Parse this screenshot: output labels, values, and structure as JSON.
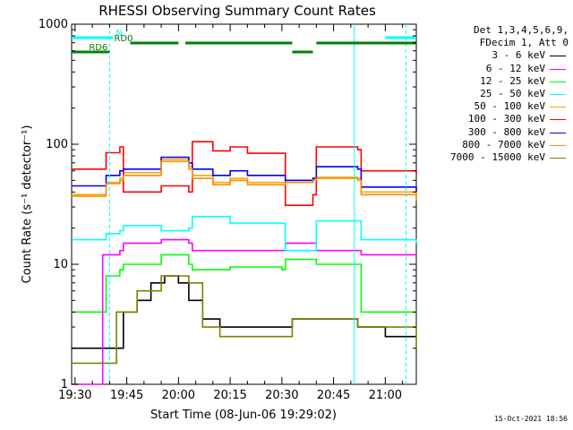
{
  "chart_data": {
    "type": "line",
    "title": "RHESSI Observing Summary Count Rates",
    "xlabel": "Start Time (08-Jun-06 19:29:02)",
    "ylabel": "Count Rate (s⁻¹ detector⁻¹)",
    "y_scale": "log",
    "ylim": [
      1,
      1000
    ],
    "xlim": [
      "19:29",
      "21:09"
    ],
    "x_ticks": [
      "19:30",
      "19:45",
      "20:00",
      "20:15",
      "20:30",
      "20:45",
      "21:00"
    ],
    "y_ticks": [
      "1",
      "10",
      "100",
      "1000"
    ],
    "grid": false,
    "legend_position": "right",
    "legend_header": [
      "Det 1,3,4,5,6,9,",
      "FDecim 1, Att 0"
    ],
    "series": [
      {
        "name": "3 - 6 keV",
        "color": "#000000",
        "values": [
          {
            "t": "19:29",
            "v": 2
          },
          {
            "t": "19:39",
            "v": 2
          },
          {
            "t": "19:44",
            "v": 4
          },
          {
            "t": "19:48",
            "v": 5
          },
          {
            "t": "19:52",
            "v": 7
          },
          {
            "t": "19:56",
            "v": 8
          },
          {
            "t": "20:00",
            "v": 7
          },
          {
            "t": "20:03",
            "v": 5
          },
          {
            "t": "20:07",
            "v": 3.5
          },
          {
            "t": "20:12",
            "v": 3
          },
          {
            "t": "20:20",
            "v": 3
          },
          {
            "t": "20:30",
            "v": 3
          },
          {
            "t": "20:33",
            "v": 3.5
          },
          {
            "t": "20:40",
            "v": 3.5
          },
          {
            "t": "20:45",
            "v": 3.5
          },
          {
            "t": "20:52",
            "v": 3
          },
          {
            "t": "21:00",
            "v": 2.5
          },
          {
            "t": "21:09",
            "v": 2.5
          }
        ]
      },
      {
        "name": "6 - 12 keV",
        "color": "#ff00ff",
        "values": [
          {
            "t": "19:29",
            "v": 1
          },
          {
            "t": "19:37",
            "v": 1
          },
          {
            "t": "19:38",
            "v": 12
          },
          {
            "t": "19:43",
            "v": 13
          },
          {
            "t": "19:44",
            "v": 15
          },
          {
            "t": "19:55",
            "v": 16
          },
          {
            "t": "20:03",
            "v": 15
          },
          {
            "t": "20:04",
            "v": 13
          },
          {
            "t": "20:30",
            "v": 13
          },
          {
            "t": "20:31",
            "v": 15
          },
          {
            "t": "20:39",
            "v": 15
          },
          {
            "t": "20:40",
            "v": 13
          },
          {
            "t": "20:52",
            "v": 13
          },
          {
            "t": "20:53",
            "v": 12
          },
          {
            "t": "21:09",
            "v": 12
          }
        ]
      },
      {
        "name": "12 - 25 keV",
        "color": "#00ff00",
        "values": [
          {
            "t": "19:29",
            "v": 4
          },
          {
            "t": "19:38",
            "v": 4
          },
          {
            "t": "19:39",
            "v": 8
          },
          {
            "t": "19:43",
            "v": 9
          },
          {
            "t": "19:44",
            "v": 10
          },
          {
            "t": "19:55",
            "v": 12
          },
          {
            "t": "20:03",
            "v": 10
          },
          {
            "t": "20:04",
            "v": 9
          },
          {
            "t": "20:15",
            "v": 9.5
          },
          {
            "t": "20:30",
            "v": 9
          },
          {
            "t": "20:31",
            "v": 11
          },
          {
            "t": "20:39",
            "v": 11
          },
          {
            "t": "20:40",
            "v": 10
          },
          {
            "t": "20:52",
            "v": 10
          },
          {
            "t": "20:53",
            "v": 4
          },
          {
            "t": "21:09",
            "v": 4
          }
        ]
      },
      {
        "name": "25 - 50 keV",
        "color": "#00ffff",
        "values": [
          {
            "t": "19:29",
            "v": 16
          },
          {
            "t": "19:38",
            "v": 16
          },
          {
            "t": "19:39",
            "v": 18
          },
          {
            "t": "19:43",
            "v": 19
          },
          {
            "t": "19:44",
            "v": 21
          },
          {
            "t": "19:55",
            "v": 19
          },
          {
            "t": "20:03",
            "v": 20
          },
          {
            "t": "20:04",
            "v": 25
          },
          {
            "t": "20:15",
            "v": 22
          },
          {
            "t": "20:30",
            "v": 22
          },
          {
            "t": "20:31",
            "v": 13
          },
          {
            "t": "20:39",
            "v": 13
          },
          {
            "t": "20:40",
            "v": 23
          },
          {
            "t": "20:52",
            "v": 23
          },
          {
            "t": "20:53",
            "v": 16
          },
          {
            "t": "21:09",
            "v": 15
          }
        ]
      },
      {
        "name": "50 - 100 keV",
        "color": "#ffa500",
        "values": [
          {
            "t": "19:29",
            "v": 38
          },
          {
            "t": "19:38",
            "v": 38
          },
          {
            "t": "19:39",
            "v": 48
          },
          {
            "t": "19:43",
            "v": 52
          },
          {
            "t": "19:44",
            "v": 58
          },
          {
            "t": "19:55",
            "v": 75
          },
          {
            "t": "20:03",
            "v": 65
          },
          {
            "t": "20:04",
            "v": 55
          },
          {
            "t": "20:10",
            "v": 48
          },
          {
            "t": "20:15",
            "v": 52
          },
          {
            "t": "20:20",
            "v": 48
          },
          {
            "t": "20:30",
            "v": 48
          },
          {
            "t": "20:31",
            "v": 50
          },
          {
            "t": "20:39",
            "v": 52
          },
          {
            "t": "20:40",
            "v": 53
          },
          {
            "t": "20:52",
            "v": 52
          },
          {
            "t": "20:53",
            "v": 40
          },
          {
            "t": "21:09",
            "v": 35
          }
        ]
      },
      {
        "name": "100 - 300 keV",
        "color": "#ff0000",
        "values": [
          {
            "t": "19:29",
            "v": 62
          },
          {
            "t": "19:38",
            "v": 62
          },
          {
            "t": "19:39",
            "v": 85
          },
          {
            "t": "19:43",
            "v": 95
          },
          {
            "t": "19:44",
            "v": 40
          },
          {
            "t": "19:55",
            "v": 45
          },
          {
            "t": "20:03",
            "v": 40
          },
          {
            "t": "20:04",
            "v": 105
          },
          {
            "t": "20:10",
            "v": 88
          },
          {
            "t": "20:15",
            "v": 95
          },
          {
            "t": "20:20",
            "v": 84
          },
          {
            "t": "20:30",
            "v": 84
          },
          {
            "t": "20:31",
            "v": 31
          },
          {
            "t": "20:39",
            "v": 38
          },
          {
            "t": "20:40",
            "v": 95
          },
          {
            "t": "20:52",
            "v": 90
          },
          {
            "t": "20:53",
            "v": 60
          },
          {
            "t": "21:09",
            "v": 56
          }
        ]
      },
      {
        "name": "300 - 800 keV",
        "color": "#0000ff",
        "values": [
          {
            "t": "19:29",
            "v": 45
          },
          {
            "t": "19:38",
            "v": 45
          },
          {
            "t": "19:39",
            "v": 55
          },
          {
            "t": "19:43",
            "v": 60
          },
          {
            "t": "19:44",
            "v": 62
          },
          {
            "t": "19:55",
            "v": 78
          },
          {
            "t": "20:03",
            "v": 70
          },
          {
            "t": "20:04",
            "v": 62
          },
          {
            "t": "20:10",
            "v": 55
          },
          {
            "t": "20:15",
            "v": 60
          },
          {
            "t": "20:20",
            "v": 55
          },
          {
            "t": "20:30",
            "v": 55
          },
          {
            "t": "20:31",
            "v": 50
          },
          {
            "t": "20:39",
            "v": 52
          },
          {
            "t": "20:40",
            "v": 65
          },
          {
            "t": "20:52",
            "v": 62
          },
          {
            "t": "20:53",
            "v": 44
          },
          {
            "t": "21:09",
            "v": 40
          }
        ]
      },
      {
        "name": "800 - 7000 keV",
        "color": "#ff8c00",
        "values": [
          {
            "t": "19:29",
            "v": 37
          },
          {
            "t": "19:38",
            "v": 37
          },
          {
            "t": "19:39",
            "v": 47
          },
          {
            "t": "19:43",
            "v": 50
          },
          {
            "t": "19:44",
            "v": 55
          },
          {
            "t": "19:55",
            "v": 72
          },
          {
            "t": "20:03",
            "v": 62
          },
          {
            "t": "20:04",
            "v": 52
          },
          {
            "t": "20:10",
            "v": 46
          },
          {
            "t": "20:15",
            "v": 50
          },
          {
            "t": "20:20",
            "v": 46
          },
          {
            "t": "20:30",
            "v": 46
          },
          {
            "t": "20:31",
            "v": 48
          },
          {
            "t": "20:39",
            "v": 50
          },
          {
            "t": "20:40",
            "v": 52
          },
          {
            "t": "20:52",
            "v": 50
          },
          {
            "t": "20:53",
            "v": 38
          },
          {
            "t": "21:09",
            "v": 34
          }
        ]
      },
      {
        "name": "7000 - 15000 keV",
        "color": "#808000",
        "values": [
          {
            "t": "19:29",
            "v": 1.5
          },
          {
            "t": "19:38",
            "v": 1.5
          },
          {
            "t": "19:42",
            "v": 4
          },
          {
            "t": "19:48",
            "v": 6
          },
          {
            "t": "19:55",
            "v": 8
          },
          {
            "t": "20:03",
            "v": 7
          },
          {
            "t": "20:07",
            "v": 3
          },
          {
            "t": "20:12",
            "v": 2.5
          },
          {
            "t": "20:30",
            "v": 2.5
          },
          {
            "t": "20:33",
            "v": 3.5
          },
          {
            "t": "20:45",
            "v": 3.5
          },
          {
            "t": "20:52",
            "v": 3
          },
          {
            "t": "21:09",
            "v": 2
          }
        ]
      }
    ],
    "annotations": [
      {
        "text": "N",
        "color": "#00ffff",
        "segments": [
          [
            "19:29",
            "19:41"
          ],
          [
            "21:00",
            "21:09"
          ]
        ]
      },
      {
        "text": "RD0",
        "color": "#008000",
        "segments": [
          [
            "19:46",
            "20:00"
          ],
          [
            "20:02",
            "20:33"
          ],
          [
            "20:40",
            "21:09"
          ]
        ]
      },
      {
        "text": "RD6",
        "color": "#008000",
        "segments": [
          [
            "19:29",
            "19:40"
          ],
          [
            "20:33",
            "20:39"
          ]
        ]
      }
    ],
    "vertical_markers": [
      {
        "t": "19:40",
        "style": "dashed"
      },
      {
        "t": "20:51",
        "style": "solid"
      },
      {
        "t": "21:06",
        "style": "dashed"
      }
    ]
  },
  "footer_timestamp": "15-Oct-2021 18:56"
}
